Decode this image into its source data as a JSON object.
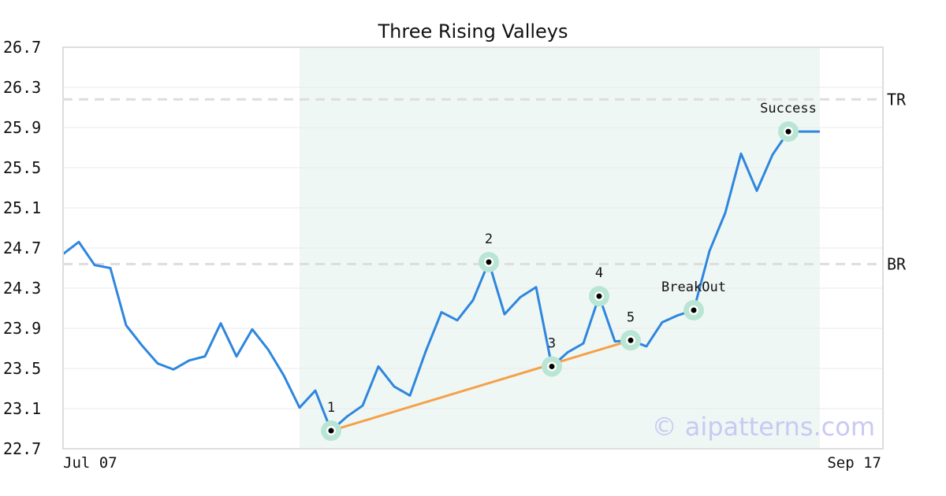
{
  "chart_data": {
    "type": "line",
    "title": "Three Rising Valleys",
    "ylim": [
      22.7,
      26.7
    ],
    "y_ticks": [
      "26.7",
      "26.3",
      "25.9",
      "25.5",
      "25.1",
      "24.7",
      "24.3",
      "23.9",
      "23.5",
      "23.1",
      "22.7"
    ],
    "x_tick_labels": [
      "Jul 07",
      "Sep 17"
    ],
    "grid": true,
    "series": [
      {
        "values": [
          24.64,
          24.76,
          24.53,
          24.5,
          23.93,
          23.73,
          23.55,
          23.49,
          23.58,
          23.62,
          23.95,
          23.62,
          23.89,
          23.69,
          23.43,
          23.11,
          23.28,
          22.88,
          23.02,
          23.13,
          23.52,
          23.32,
          23.23,
          23.67,
          24.06,
          23.98,
          24.18,
          24.56,
          24.04,
          24.21,
          24.31,
          23.52,
          23.66,
          23.75,
          24.22,
          23.77,
          23.78,
          23.72,
          23.96,
          24.03,
          24.08,
          24.67,
          25.05,
          25.64,
          25.27,
          25.63,
          25.86,
          25.86,
          25.86
        ]
      }
    ],
    "pattern_line": {
      "from_index": 17,
      "to_index": 36
    },
    "shaded_region": {
      "from_index": 15,
      "to_index": 48
    },
    "horizontal_lines": [
      {
        "label": "TR",
        "value": 26.18
      },
      {
        "label": "BR",
        "value": 24.54
      }
    ],
    "points": [
      {
        "label": "1",
        "index": 17
      },
      {
        "label": "2",
        "index": 27
      },
      {
        "label": "3",
        "index": 31
      },
      {
        "label": "4",
        "index": 34
      },
      {
        "label": "5",
        "index": 36
      },
      {
        "label": "BreakOut",
        "index": 40
      },
      {
        "label": "Success",
        "index": 46
      }
    ],
    "watermark": "© aipatterns.com",
    "colors": {
      "line": "#2e86de",
      "pattern_line": "#f4a14a",
      "shade": "#eff7f4",
      "marker_halo": "#b9e5d4",
      "hline": "#dddddd",
      "grid": "#e9e9e9",
      "frame": "#dddddd"
    }
  }
}
